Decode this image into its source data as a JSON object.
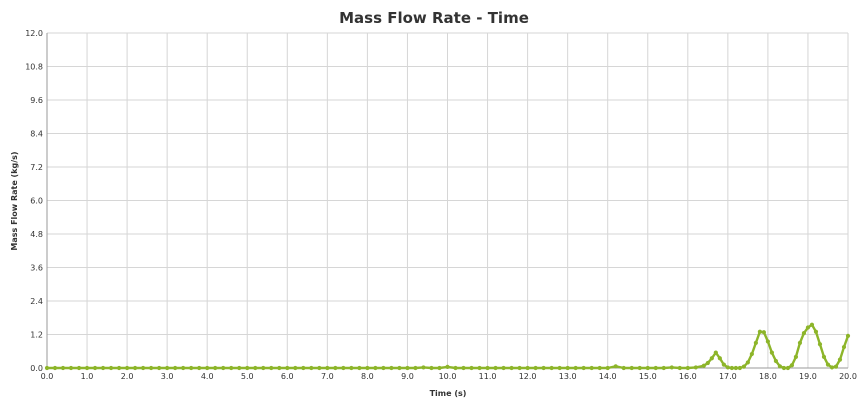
{
  "chart_data": {
    "type": "line",
    "title": "Mass Flow Rate - Time",
    "xlabel": "Time (s)",
    "ylabel": "Mass Flow Rate (kg/s)",
    "xlim": [
      0,
      20
    ],
    "ylim": [
      0,
      12
    ],
    "x_ticks": [
      "0.0",
      "1.0",
      "2.0",
      "3.0",
      "4.0",
      "5.0",
      "6.0",
      "7.0",
      "8.0",
      "9.0",
      "10.0",
      "11.0",
      "12.0",
      "13.0",
      "14.0",
      "15.0",
      "16.0",
      "17.0",
      "18.0",
      "19.0",
      "20.0"
    ],
    "y_ticks": [
      "0.0",
      "1.2",
      "2.4",
      "3.6",
      "4.8",
      "6.0",
      "7.2",
      "8.4",
      "9.6",
      "10.8",
      "12.0"
    ],
    "grid": true,
    "series_color": "#8db52a",
    "series": [
      {
        "x": [
          0.0,
          0.2,
          0.4,
          0.6,
          0.8,
          1.0,
          1.2,
          1.4,
          1.6,
          1.8,
          2.0,
          2.2,
          2.4,
          2.6,
          2.8,
          3.0,
          3.2,
          3.4,
          3.6,
          3.8,
          4.0,
          4.2,
          4.4,
          4.6,
          4.8,
          5.0,
          5.2,
          5.4,
          5.6,
          5.8,
          6.0,
          6.2,
          6.4,
          6.6,
          6.8,
          7.0,
          7.2,
          7.4,
          7.6,
          7.8,
          8.0,
          8.2,
          8.4,
          8.6,
          8.8,
          9.0,
          9.2,
          9.4,
          9.6,
          9.8,
          10.0,
          10.2,
          10.4,
          10.6,
          10.8,
          11.0,
          11.2,
          11.4,
          11.6,
          11.8,
          12.0,
          12.2,
          12.4,
          12.6,
          12.8,
          13.0,
          13.2,
          13.4,
          13.6,
          13.8,
          14.0,
          14.2,
          14.4,
          14.6,
          14.8,
          15.0,
          15.2,
          15.4,
          15.6,
          15.8,
          16.0,
          16.2,
          16.4,
          16.5,
          16.6,
          16.7,
          16.8,
          16.9,
          17.0,
          17.1,
          17.2,
          17.3,
          17.4,
          17.5,
          17.6,
          17.7,
          17.8,
          17.9,
          18.0,
          18.1,
          18.2,
          18.3,
          18.4,
          18.5,
          18.6,
          18.7,
          18.8,
          18.9,
          19.0,
          19.1,
          19.2,
          19.3,
          19.4,
          19.5,
          19.6,
          19.7,
          19.8,
          19.9,
          20.0
        ],
        "y": [
          0.0,
          0.0,
          0.0,
          0.0,
          0.0,
          0.0,
          0.0,
          0.0,
          0.0,
          0.0,
          0.0,
          0.0,
          0.0,
          0.0,
          0.0,
          0.0,
          0.0,
          0.0,
          0.0,
          0.0,
          0.0,
          0.0,
          0.0,
          0.0,
          0.0,
          0.0,
          0.0,
          0.0,
          0.0,
          0.0,
          0.0,
          0.0,
          0.0,
          0.0,
          0.0,
          0.0,
          0.0,
          0.0,
          0.0,
          0.0,
          0.0,
          0.0,
          0.0,
          0.0,
          0.0,
          0.0,
          0.0,
          0.02,
          0.0,
          0.0,
          0.04,
          0.0,
          0.0,
          0.0,
          0.0,
          0.0,
          0.0,
          0.0,
          0.0,
          0.0,
          0.0,
          0.0,
          0.0,
          0.0,
          0.0,
          0.0,
          0.0,
          0.0,
          0.0,
          0.0,
          0.0,
          0.06,
          0.0,
          0.0,
          0.0,
          0.0,
          0.0,
          0.0,
          0.02,
          0.0,
          0.0,
          0.02,
          0.08,
          0.18,
          0.35,
          0.55,
          0.35,
          0.12,
          0.02,
          0.0,
          0.0,
          0.0,
          0.05,
          0.2,
          0.5,
          0.9,
          1.3,
          1.28,
          0.95,
          0.55,
          0.25,
          0.06,
          0.0,
          0.0,
          0.1,
          0.4,
          0.9,
          1.25,
          1.45,
          1.55,
          1.3,
          0.85,
          0.4,
          0.12,
          0.02,
          0.05,
          0.3,
          0.75,
          1.15
        ]
      }
    ]
  }
}
